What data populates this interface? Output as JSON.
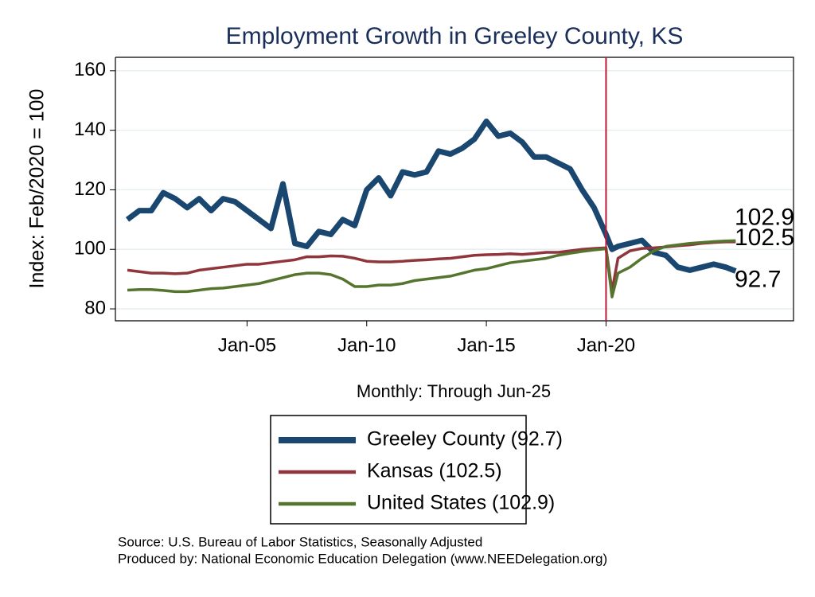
{
  "chart_data": {
    "type": "line",
    "title": "Employment Growth in Greeley  County, KS",
    "y_label": "Index: Feb/2020 = 100",
    "x_label": "Monthly: Through Jun-25",
    "source": "Source: U.S. Bureau of Labor Statistics, Seasonally Adjusted",
    "producer": "Produced by: National Economic Education Delegation (www.NEEDelegation.org)",
    "x": [
      "2000-01",
      "2000-07",
      "2001-01",
      "2001-07",
      "2002-01",
      "2002-07",
      "2003-01",
      "2003-07",
      "2004-01",
      "2004-07",
      "2005-01",
      "2005-07",
      "2006-01",
      "2006-07",
      "2007-01",
      "2007-07",
      "2008-01",
      "2008-07",
      "2009-01",
      "2009-07",
      "2010-01",
      "2010-07",
      "2011-01",
      "2011-07",
      "2012-01",
      "2012-07",
      "2013-01",
      "2013-07",
      "2014-01",
      "2014-07",
      "2015-01",
      "2015-07",
      "2016-01",
      "2016-07",
      "2017-01",
      "2017-07",
      "2018-01",
      "2018-07",
      "2019-01",
      "2019-07",
      "2020-01",
      "2020-04",
      "2020-07",
      "2021-01",
      "2021-07",
      "2022-01",
      "2022-07",
      "2023-01",
      "2023-07",
      "2024-01",
      "2024-07",
      "2025-01",
      "2025-06"
    ],
    "series": [
      {
        "name": "Greeley  County (92.7)",
        "color": "#1a476f",
        "width": 7,
        "values": [
          110,
          113,
          113,
          119,
          117,
          114,
          117,
          113,
          117,
          116,
          113,
          110,
          107,
          122,
          102,
          101,
          106,
          105,
          110,
          108,
          120,
          124,
          118,
          126,
          125,
          126,
          133,
          132,
          134,
          137,
          143,
          138,
          139,
          136,
          131,
          131,
          129,
          127,
          120,
          114,
          105,
          100,
          101,
          102,
          103,
          99,
          98,
          94,
          93,
          94,
          95,
          94,
          92.7
        ]
      },
      {
        "name": "Kansas (102.5)",
        "color": "#90353b",
        "width": 3.5,
        "values": [
          93,
          92.5,
          92,
          92,
          91.8,
          92,
          93,
          93.5,
          94,
          94.5,
          95,
          95,
          95.5,
          96,
          96.5,
          97.5,
          97.5,
          97.8,
          97.7,
          97,
          96,
          95.8,
          95.8,
          96,
          96.3,
          96.5,
          96.8,
          97,
          97.5,
          98,
          98.2,
          98.3,
          98.5,
          98.3,
          98.6,
          99,
          99,
          99.5,
          100,
          100.3,
          100.5,
          86,
          97,
          99.5,
          100.3,
          100.5,
          100.8,
          101.2,
          101.5,
          102,
          102.3,
          102.5,
          102.5
        ]
      },
      {
        "name": "United States (102.9)",
        "color": "#55752f",
        "width": 3.5,
        "values": [
          86.3,
          86.5,
          86.5,
          86.2,
          85.8,
          85.8,
          86.3,
          86.8,
          87,
          87.5,
          88,
          88.5,
          89.5,
          90.5,
          91.5,
          92,
          92,
          91.5,
          90,
          87.5,
          87.5,
          88,
          88,
          88.5,
          89.5,
          90,
          90.5,
          91,
          92,
          93,
          93.5,
          94.5,
          95.5,
          96,
          96.5,
          97,
          98,
          98.7,
          99.3,
          99.8,
          100.2,
          84,
          92,
          94,
          97,
          99.5,
          101,
          101.5,
          102,
          102.3,
          102.6,
          102.8,
          102.9
        ]
      }
    ],
    "xlim": [
      "1999-07",
      "2027-11"
    ],
    "xticks": [
      {
        "value": "2005-01",
        "label": "Jan-05"
      },
      {
        "value": "2010-01",
        "label": "Jan-10"
      },
      {
        "value": "2015-01",
        "label": "Jan-15"
      },
      {
        "value": "2020-01",
        "label": "Jan-20"
      }
    ],
    "ylim": [
      76,
      164.5
    ],
    "yticks": [
      80,
      100,
      120,
      140,
      160
    ],
    "grid": true,
    "reference_line_x": "2020-01",
    "reference_line_color": "#c0163a"
  }
}
